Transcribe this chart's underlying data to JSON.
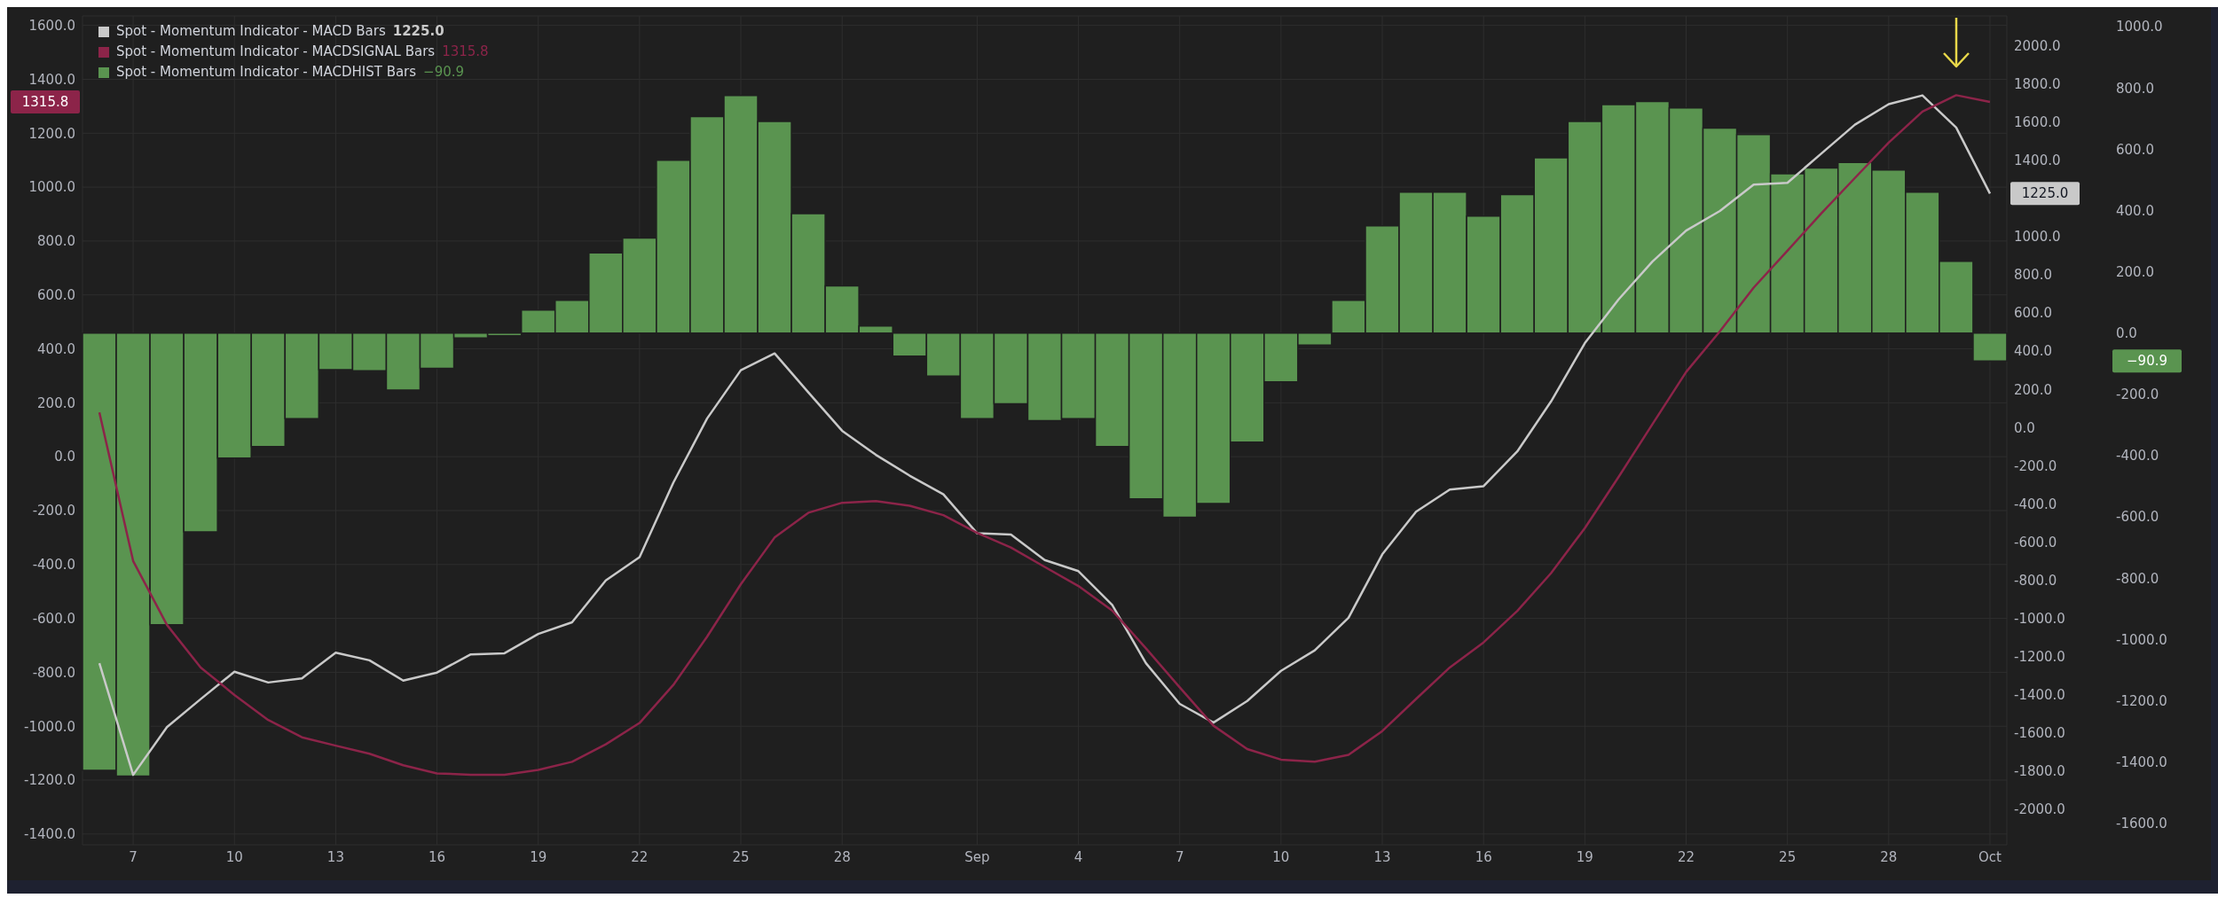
{
  "chart_data": {
    "type": "bar",
    "categories": [
      null,
      "7",
      null,
      null,
      "10",
      null,
      null,
      "13",
      null,
      null,
      "16",
      null,
      null,
      "19",
      null,
      null,
      "22",
      null,
      null,
      "25",
      null,
      null,
      "28",
      null,
      null,
      null,
      "Sep",
      null,
      null,
      "4",
      null,
      null,
      "7",
      null,
      null,
      "10",
      null,
      null,
      "13",
      null,
      null,
      "16",
      null,
      null,
      "19",
      null,
      null,
      "22",
      null,
      null,
      "25",
      null,
      null,
      "28",
      null,
      null,
      "Oct"
    ],
    "series": [
      {
        "name": "Spot - Momentum Indicator - MACD Bars",
        "type": "line",
        "axis": "y2",
        "color": "#c9c9c9",
        "values": [
          -1234,
          -1819,
          -1569,
          -1422,
          -1279,
          -1335,
          -1313,
          -1179,
          -1219,
          -1325,
          -1283,
          -1188,
          -1182,
          -1081,
          -1020,
          -801,
          -679,
          -289,
          47,
          300,
          388,
          184,
          -17,
          -143,
          -252,
          -350,
          -554,
          -560,
          -694,
          -752,
          -929,
          -1234,
          -1447,
          -1545,
          -1432,
          -1274,
          -1167,
          -996,
          -664,
          -441,
          -325,
          -307,
          -125,
          137,
          442,
          671,
          869,
          1031,
          1134,
          1272,
          1281,
          1434,
          1586,
          1693,
          1739,
          1571,
          1225.0
        ]
      },
      {
        "name": "Spot - Momentum Indicator - MACDSIGNAL Bars",
        "type": "line",
        "axis": "y",
        "color": "#8c2449",
        "values": [
          164,
          -387,
          -624,
          -782,
          -884,
          -977,
          -1041,
          -1072,
          -1102,
          -1145,
          -1175,
          -1180,
          -1180,
          -1162,
          -1132,
          -1067,
          -988,
          -847,
          -668,
          -473,
          -300,
          -208,
          -171,
          -165,
          -182,
          -217,
          -283,
          -337,
          -409,
          -480,
          -571,
          -711,
          -856,
          -998,
          -1085,
          -1124,
          -1132,
          -1106,
          -1018,
          -899,
          -782,
          -689,
          -572,
          -432,
          -265,
          -75,
          120,
          314,
          465,
          627,
          764,
          902,
          1034,
          1165,
          1280,
          1341,
          1315.8
        ]
      },
      {
        "name": "Spot - Momentum Indicator - MACDHIST Bars",
        "axis": "y3",
        "color": "#5a9450",
        "values": [
          -1427,
          -1446,
          -952,
          -649,
          -408,
          -370,
          -279,
          -119,
          -123,
          -186,
          -115,
          -16,
          -9,
          75,
          107,
          262,
          310,
          564,
          707,
          775,
          691,
          390,
          154,
          23,
          -75,
          -140,
          -279,
          -231,
          -286,
          -279,
          -370,
          -541,
          -601,
          -556,
          -356,
          -159,
          -39,
          107,
          350,
          460,
          460,
          382,
          452,
          572,
          691,
          746,
          756,
          735,
          669,
          648,
          520,
          539,
          557,
          532,
          460,
          234,
          -90.9
        ]
      }
    ],
    "annotations": [
      "1225.0",
      "1315.8",
      "−90.9"
    ],
    "ylim": [
      -1440,
      1635
    ],
    "yticks": [
      {
        "value": -1400,
        "label": "-1400.0"
      },
      {
        "value": -1200,
        "label": "-1200.0"
      },
      {
        "value": -1000,
        "label": "-1000.0"
      },
      {
        "value": -800,
        "label": "-800.0"
      },
      {
        "value": -600,
        "label": "-600.0"
      },
      {
        "value": -400,
        "label": "-400.0"
      },
      {
        "value": -200,
        "label": "-200.0"
      },
      {
        "value": 0,
        "label": "0.0"
      },
      {
        "value": 200,
        "label": "200.0"
      },
      {
        "value": 400,
        "label": "400.0"
      },
      {
        "value": 600,
        "label": "600.0"
      },
      {
        "value": 800,
        "label": "800.0"
      },
      {
        "value": 1000,
        "label": "1000.0"
      },
      {
        "value": 1200,
        "label": "1200.0"
      },
      {
        "value": 1400,
        "label": "1400.0"
      },
      {
        "value": 1600,
        "label": "1600.0"
      }
    ],
    "y2lim": [
      -2185,
      2155
    ],
    "y2ticks": [
      {
        "value": -2000,
        "label": "-2000.0"
      },
      {
        "value": -1800,
        "label": "-1800.0"
      },
      {
        "value": -1600,
        "label": "-1600.0"
      },
      {
        "value": -1400,
        "label": "-1400.0"
      },
      {
        "value": -1200,
        "label": "-1200.0"
      },
      {
        "value": -1000,
        "label": "-1000.0"
      },
      {
        "value": -800,
        "label": "-800.0"
      },
      {
        "value": -600,
        "label": "-600.0"
      },
      {
        "value": -400,
        "label": "-400.0"
      },
      {
        "value": -200,
        "label": "-200.0"
      },
      {
        "value": 0,
        "label": "0.0"
      },
      {
        "value": 200,
        "label": "200.0"
      },
      {
        "value": 400,
        "label": "400.0"
      },
      {
        "value": 600,
        "label": "600.0"
      },
      {
        "value": 800,
        "label": "800.0"
      },
      {
        "value": 1000,
        "label": "1000.0"
      },
      {
        "value": 1400,
        "label": "1400.0"
      },
      {
        "value": 1600,
        "label": "1600.0"
      },
      {
        "value": 1800,
        "label": "1800.0"
      },
      {
        "value": 2000,
        "label": "2000.0"
      }
    ],
    "y3lim": [
      -1670,
      1035
    ],
    "y3ticks": [
      {
        "value": -1600,
        "label": "-1600.0"
      },
      {
        "value": -1400,
        "label": "-1400.0"
      },
      {
        "value": -1200,
        "label": "-1200.0"
      },
      {
        "value": -1000,
        "label": "-1000.0"
      },
      {
        "value": -800,
        "label": "-800.0"
      },
      {
        "value": -600,
        "label": "-600.0"
      },
      {
        "value": -400,
        "label": "-400.0"
      },
      {
        "value": -200,
        "label": "-200.0"
      },
      {
        "value": 0,
        "label": "0.0"
      },
      {
        "value": 200,
        "label": "200.0"
      },
      {
        "value": 400,
        "label": "400.0"
      },
      {
        "value": 600,
        "label": "600.0"
      },
      {
        "value": 800,
        "label": "800.0"
      },
      {
        "value": 1000,
        "label": "1000.0"
      }
    ],
    "grid": true,
    "legend": "top left",
    "marker": "none",
    "line_style": "solid"
  }
}
